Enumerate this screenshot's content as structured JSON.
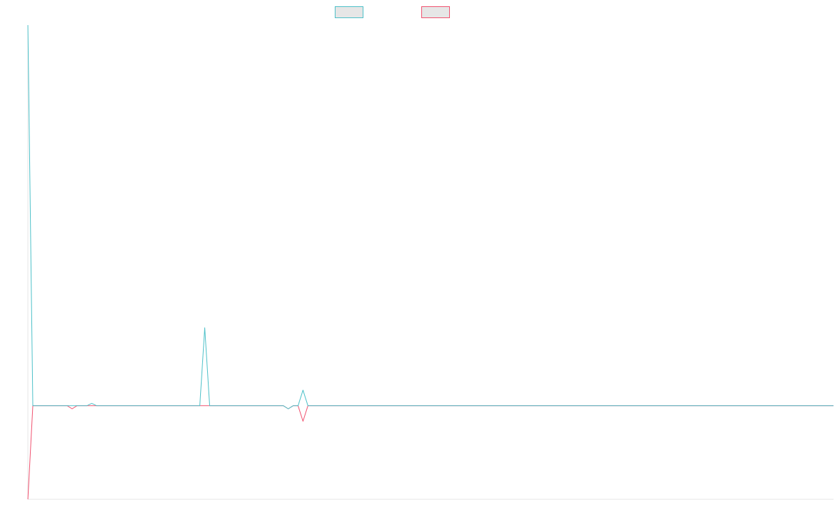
{
  "chart_data": {
    "type": "line",
    "title": "",
    "xlabel": "",
    "ylabel": "",
    "x": [
      0,
      1,
      2,
      3,
      4,
      5,
      6,
      7,
      8,
      9,
      10,
      11,
      12,
      13,
      14,
      15,
      16,
      17,
      18,
      19,
      20,
      21,
      22,
      23,
      24,
      25,
      26,
      27,
      28,
      29,
      30,
      31,
      32,
      33,
      34,
      35,
      36,
      37,
      38,
      39,
      40,
      41,
      42,
      43,
      44,
      45,
      46,
      47,
      48,
      49,
      50,
      51,
      52,
      53,
      54,
      55,
      56,
      57,
      58,
      59,
      60,
      61,
      62,
      63,
      64,
      65,
      66,
      67,
      68,
      69,
      70,
      71,
      72,
      73,
      74,
      75,
      76,
      77,
      78,
      79,
      80,
      81,
      82,
      83,
      84,
      85,
      86,
      87,
      88,
      89,
      90,
      91,
      92,
      93,
      94,
      95,
      96,
      97,
      98,
      99,
      100,
      101,
      102,
      103,
      104,
      105,
      106,
      107,
      108,
      109,
      110,
      111,
      112,
      113,
      114,
      115,
      116,
      117,
      118,
      119,
      120,
      121,
      122,
      123,
      124,
      125,
      126,
      127,
      128,
      129,
      130,
      131,
      132,
      133,
      134,
      135,
      136,
      137,
      138,
      139,
      140,
      141,
      142,
      143,
      144,
      145,
      146,
      147,
      148,
      149,
      150,
      151,
      152,
      153,
      154,
      155,
      156,
      157,
      158,
      159,
      160,
      161,
      162,
      163,
      164
    ],
    "ylim": [
      -6,
      24.4
    ],
    "series": [
      {
        "color": "#4bc0c8",
        "fill": "#e6e6e6",
        "values": [
          24.4,
          0,
          0,
          0,
          0,
          0,
          0,
          0,
          0,
          0,
          0,
          0,
          0,
          0.15,
          0,
          0,
          0,
          0,
          0,
          0,
          0,
          0,
          0,
          0,
          0,
          0,
          0,
          0,
          0,
          0,
          0,
          0,
          0,
          0,
          0,
          0,
          5,
          0,
          0,
          0,
          0,
          0,
          0,
          0,
          0,
          0,
          0,
          0,
          0,
          0,
          0,
          0,
          0,
          -0.2,
          0,
          0,
          1,
          0,
          0,
          0,
          0,
          0,
          0,
          0,
          0,
          0,
          0,
          0,
          0,
          0,
          0,
          0,
          0,
          0,
          0,
          0,
          0,
          0,
          0,
          0,
          0,
          0,
          0,
          0,
          0,
          0,
          0,
          0,
          0,
          0,
          0,
          0,
          0,
          0,
          0,
          0,
          0,
          0,
          0,
          0,
          0,
          0,
          0,
          0,
          0,
          0,
          0,
          0,
          0,
          0,
          0,
          0,
          0,
          0,
          0,
          0,
          0,
          0,
          0,
          0,
          0,
          0,
          0,
          0,
          0,
          0,
          0,
          0,
          0,
          0,
          0,
          0,
          0,
          0,
          0,
          0,
          0,
          0,
          0,
          0,
          0,
          0,
          0,
          0,
          0,
          0,
          0,
          0,
          0,
          0,
          0,
          0,
          0,
          0,
          0,
          0,
          0,
          0,
          0,
          0,
          0,
          0,
          0,
          0,
          0
        ]
      },
      {
        "color": "#f0506e",
        "fill": "#e6e6e6",
        "values": [
          -6,
          0,
          0,
          0,
          0,
          0,
          0,
          0,
          0,
          -0.2,
          0,
          0,
          0,
          0,
          0,
          0,
          0,
          0,
          0,
          0,
          0,
          0,
          0,
          0,
          0,
          0,
          0,
          0,
          0,
          0,
          0,
          0,
          0,
          0,
          0,
          0,
          0,
          0,
          0,
          0,
          0,
          0,
          0,
          0,
          0,
          0,
          0,
          0,
          0,
          0,
          0,
          0,
          0,
          -0.2,
          0,
          0,
          -1,
          0,
          0,
          0,
          0,
          0,
          0,
          0,
          0,
          0,
          0,
          0,
          0,
          0,
          0,
          0,
          0,
          0,
          0,
          0,
          0,
          0,
          0,
          0,
          0,
          0,
          0,
          0,
          0,
          0,
          0,
          0,
          0,
          0,
          0,
          0,
          0,
          0,
          0,
          0,
          0,
          0,
          0,
          0,
          0,
          0,
          0,
          0,
          0,
          0,
          0,
          0,
          0,
          0,
          0,
          0,
          0,
          0,
          0,
          0,
          0,
          0,
          0,
          0,
          0,
          0,
          0,
          0,
          0,
          0,
          0,
          0,
          0,
          0,
          0,
          0,
          0,
          0,
          0,
          0,
          0,
          0,
          0,
          0,
          0,
          0,
          0,
          0,
          0,
          0,
          0,
          0,
          0,
          0,
          0,
          0,
          0,
          0,
          0,
          0,
          0,
          0,
          0,
          0,
          0,
          0,
          0,
          0,
          0
        ]
      }
    ],
    "legend": "top-center",
    "grid": false
  }
}
